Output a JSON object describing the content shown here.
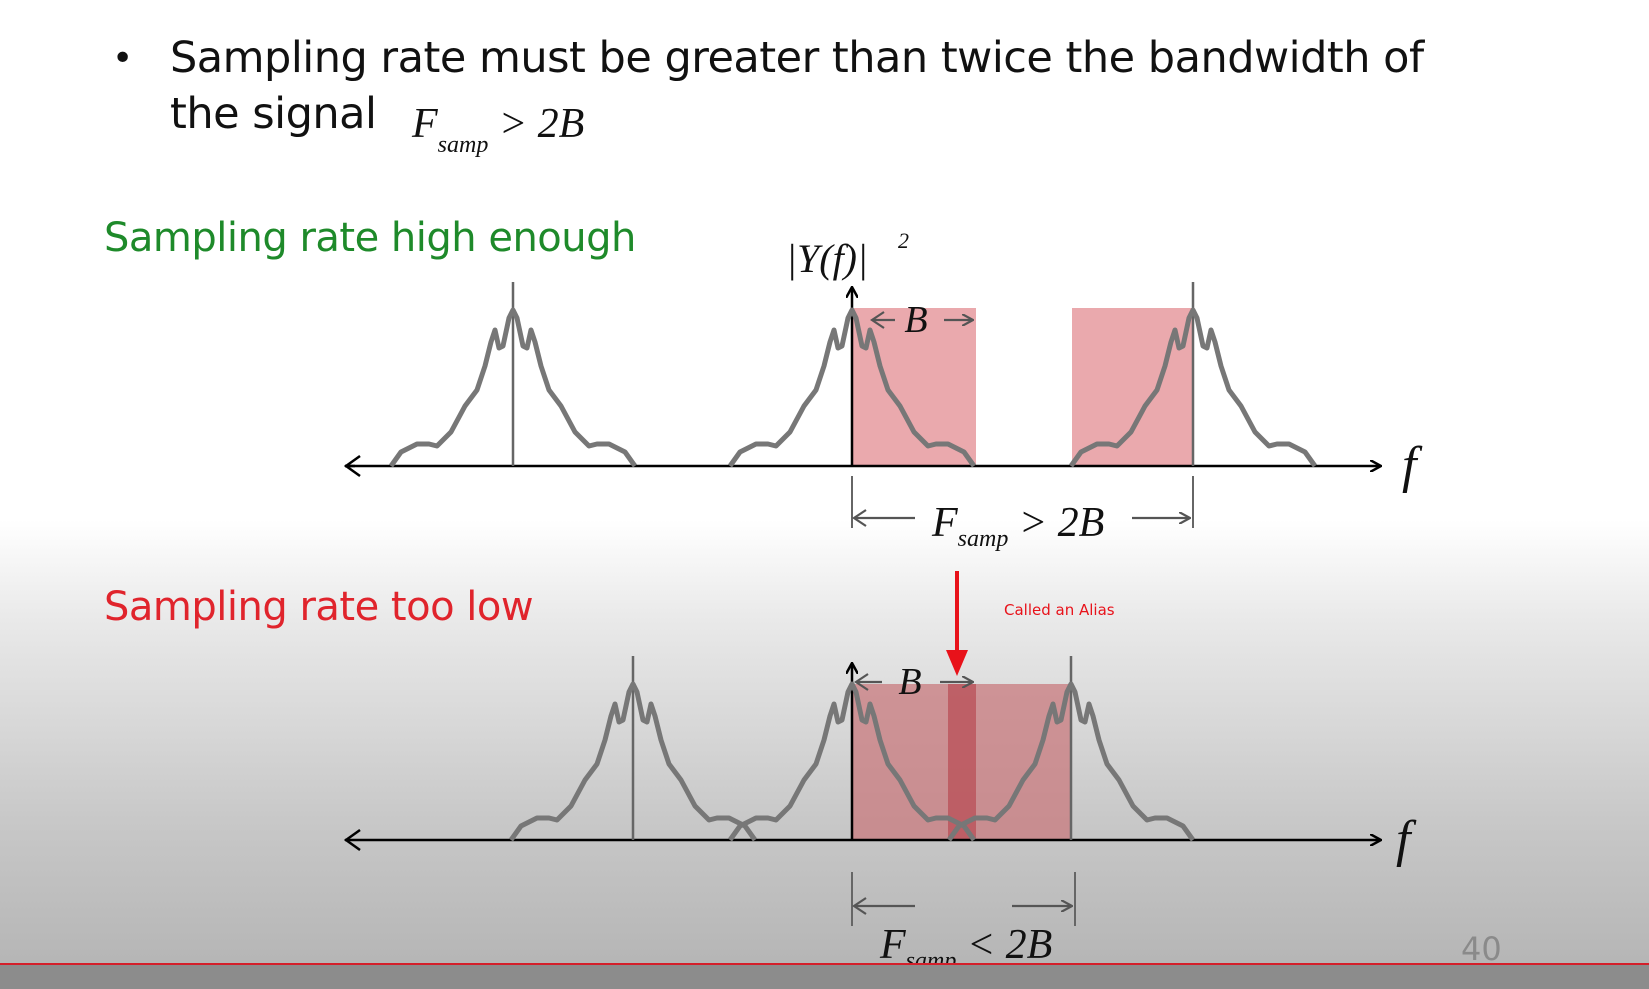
{
  "bullet": {
    "line1": "Sampling rate must be greater than twice the bandwidth of",
    "line2": "the signal"
  },
  "formula": {
    "F": "F",
    "sub": "samp",
    "rest": " > 2B"
  },
  "headings": {
    "high": "Sampling rate high enough",
    "low": "Sampling rate too low"
  },
  "top_diagram": {
    "y_label": "|Y(f)|",
    "y_sup": "2",
    "bandwidth_label": "B",
    "axis_label": "f",
    "interval_label_main": "F",
    "interval_label_sub": "samp",
    "interval_label_rest": " > 2B"
  },
  "bottom_diagram": {
    "bandwidth_label": "B",
    "axis_label": "f",
    "interval_label_main": "F",
    "interval_label_sub": "samp",
    "interval_label_rest": " < 2B"
  },
  "annotation": "Called an Alias",
  "slide_number": "40",
  "colors": {
    "high_heading": "#1e8a2a",
    "low_heading": "#e0242c",
    "band_fill": "#e8a0a4",
    "curve": "#777777",
    "alias_arrow": "#e8121a"
  }
}
